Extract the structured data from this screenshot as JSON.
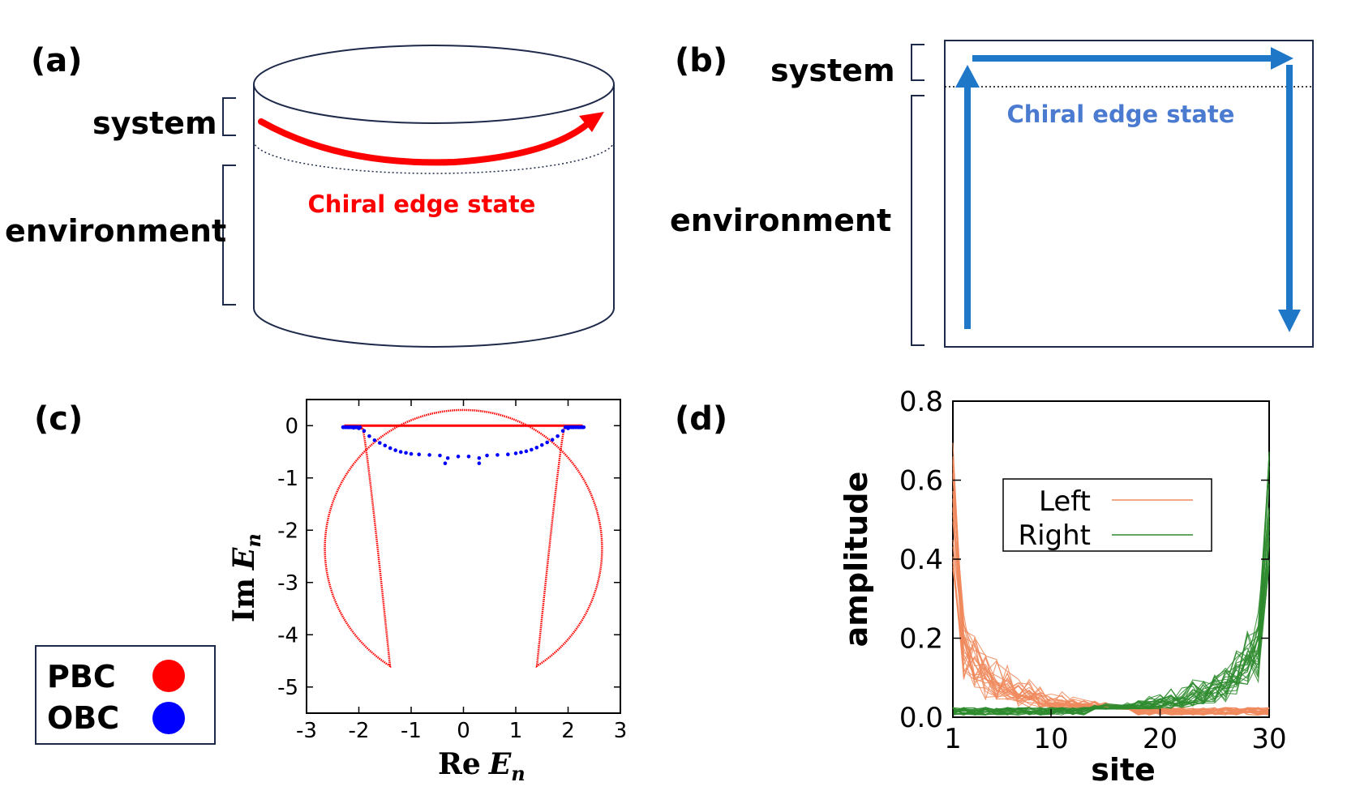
{
  "panel_a": {
    "label": "(a)",
    "system": "system",
    "environment": "environment",
    "edge_state": "Chiral edge state",
    "edge_color": "#ff0000"
  },
  "panel_b": {
    "label": "(b)",
    "system": "system",
    "environment": "environment",
    "edge_state": "Chiral edge state",
    "edge_color": "#1f77c8",
    "text_color": "#4a7bd0"
  },
  "legend_box": {
    "items": [
      {
        "label": "PBC",
        "color": "#ff0000"
      },
      {
        "label": "OBC",
        "color": "#0000ff"
      }
    ]
  },
  "chart_data": [
    {
      "panel": "(c)",
      "type": "scatter",
      "xlabel_main": "Re",
      "xlabel_var": "E",
      "xlabel_sub": "n",
      "ylabel_main": "Im",
      "ylabel_var": "E",
      "ylabel_sub": "n",
      "xlim": [
        -3,
        3
      ],
      "ylim": [
        -5.5,
        0.5
      ],
      "xticks": [
        "-3",
        "-2",
        "-1",
        "0",
        "1",
        "2",
        "3"
      ],
      "yticks": [
        "0",
        "-1",
        "-2",
        "-3",
        "-4",
        "-5"
      ],
      "series": [
        {
          "name": "PBC",
          "color": "#ff0000",
          "shape": "top line from Re -2.3 to 2.3 at Im 0, plus loop reaching Im -5 at Re 0, widest near Im -2.3 (Re ±2.7)"
        },
        {
          "name": "OBC",
          "color": "#0000ff",
          "points": [
            [
              -2.3,
              -0.03
            ],
            [
              -2.2,
              -0.03
            ],
            [
              -2.1,
              -0.04
            ],
            [
              -2.0,
              -0.05
            ],
            [
              -1.9,
              -0.1
            ],
            [
              -1.8,
              -0.2
            ],
            [
              -1.7,
              -0.28
            ],
            [
              -1.6,
              -0.33
            ],
            [
              -1.5,
              -0.38
            ],
            [
              -1.4,
              -0.43
            ],
            [
              -1.3,
              -0.47
            ],
            [
              -1.2,
              -0.5
            ],
            [
              -1.1,
              -0.52
            ],
            [
              -1.0,
              -0.54
            ],
            [
              -0.85,
              -0.55
            ],
            [
              -0.65,
              -0.56
            ],
            [
              -0.45,
              -0.57
            ],
            [
              -0.35,
              -0.72
            ],
            [
              -0.3,
              -0.62
            ],
            [
              -0.1,
              -0.59
            ],
            [
              0.1,
              -0.59
            ],
            [
              0.3,
              -0.62
            ],
            [
              0.3,
              -0.72
            ],
            [
              0.45,
              -0.57
            ],
            [
              0.65,
              -0.56
            ],
            [
              0.85,
              -0.55
            ],
            [
              1.0,
              -0.53
            ],
            [
              1.1,
              -0.51
            ],
            [
              1.2,
              -0.49
            ],
            [
              1.3,
              -0.46
            ],
            [
              1.4,
              -0.42
            ],
            [
              1.5,
              -0.37
            ],
            [
              1.6,
              -0.32
            ],
            [
              1.7,
              -0.27
            ],
            [
              1.8,
              -0.2
            ],
            [
              1.9,
              -0.1
            ],
            [
              2.0,
              -0.05
            ],
            [
              2.1,
              -0.03
            ],
            [
              2.2,
              -0.03
            ],
            [
              2.3,
              -0.03
            ]
          ]
        }
      ]
    },
    {
      "panel": "(d)",
      "type": "line",
      "xlabel": "site",
      "ylabel": "amplitude",
      "xlim": [
        1,
        30
      ],
      "ylim": [
        0,
        0.8
      ],
      "xticks": [
        "1",
        "10",
        "20",
        "30"
      ],
      "yticks": [
        "0.0",
        "0.2",
        "0.4",
        "0.6",
        "0.8"
      ],
      "legend_placement": "upper-center",
      "series": [
        {
          "name": "Left",
          "color": "#f08a5d",
          "peak_site": 1,
          "peak_amplitude": 0.7
        },
        {
          "name": "Right",
          "color": "#2e8b2e",
          "peak_site": 30,
          "peak_amplitude": 0.7
        }
      ]
    }
  ],
  "labels": {
    "c": "(c)",
    "d": "(d)"
  }
}
